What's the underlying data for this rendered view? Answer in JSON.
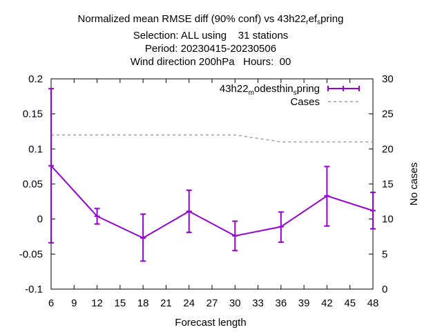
{
  "title": {
    "line1_pre": "Normalized mean RMSE diff (90% conf) vs 43h22",
    "line1_sub1": "r",
    "line1_mid": "ef",
    "line1_sub2": "s",
    "line1_post": "pring",
    "line2": "Selection: ALL using    31 stations",
    "line3": "Period: 20230415-20230506",
    "line4": "Wind direction 200hPa   Hours:  00"
  },
  "chart_data": {
    "type": "line",
    "xlabel": "Forecast length",
    "ylabel": "",
    "y2label": "No cases",
    "xlim": [
      6,
      48
    ],
    "ylim": [
      -0.1,
      0.2
    ],
    "y2lim": [
      0,
      30
    ],
    "xticks": [
      "6",
      "9",
      "12",
      "15",
      "18",
      "21",
      "24",
      "27",
      "30",
      "33",
      "36",
      "39",
      "42",
      "45",
      "48"
    ],
    "yticks": [
      "-0.1",
      "-0.05",
      "0",
      "0.05",
      "0.1",
      "0.15",
      "0.2"
    ],
    "y2ticks": [
      "0",
      "5",
      "10",
      "15",
      "20",
      "25",
      "30"
    ],
    "legend_position": "top-right",
    "series": [
      {
        "legend_pre": "43h22",
        "legend_sub1": "m",
        "legend_mid": "odesthin",
        "legend_sub2": "s",
        "legend_post": "pring",
        "color": "#9400d3",
        "axis": "y",
        "x": [
          6,
          12,
          18,
          24,
          30,
          36,
          42,
          48
        ],
        "y": [
          0.076,
          0.004,
          -0.027,
          0.011,
          -0.024,
          -0.011,
          0.033,
          0.012
        ],
        "err_low": [
          -0.034,
          -0.007,
          -0.06,
          -0.019,
          -0.045,
          -0.033,
          -0.01,
          -0.014
        ],
        "err_high": [
          0.186,
          0.015,
          0.007,
          0.041,
          -0.003,
          0.01,
          0.075,
          0.038
        ]
      },
      {
        "name": "Cases",
        "color": "#a0a0a0",
        "axis": "y2",
        "dashed": true,
        "x": [
          6,
          12,
          18,
          24,
          30,
          36,
          42,
          48
        ],
        "y": [
          22,
          22,
          22,
          22,
          22,
          21,
          21,
          21
        ]
      }
    ]
  }
}
